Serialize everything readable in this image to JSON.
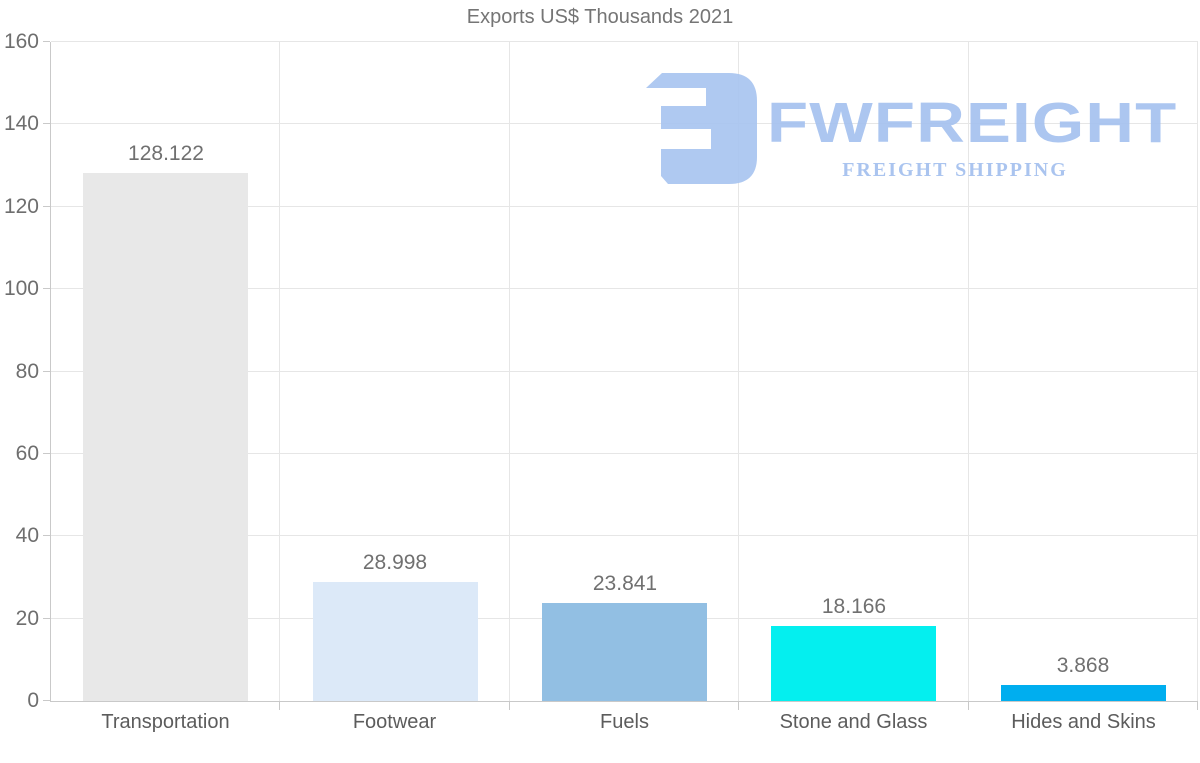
{
  "chart_data": {
    "type": "bar",
    "title": "Exports US$ Thousands 2021",
    "categories": [
      "Transportation",
      "Footwear",
      "Fuels",
      "Stone and Glass",
      "Hides and Skins"
    ],
    "values": [
      128.122,
      28.998,
      23.841,
      18.166,
      3.868
    ],
    "value_labels": [
      "128.122",
      "28.998",
      "23.841",
      "18.166",
      "3.868"
    ],
    "bar_colors": [
      "#e8e8e8",
      "#dce9f8",
      "#92bfe3",
      "#04efef",
      "#00aeef"
    ],
    "xlabel": "",
    "ylabel": "",
    "ylim": [
      0,
      160
    ],
    "ytick_step": 20,
    "ytick_labels": [
      "0",
      "20",
      "40",
      "60",
      "80",
      "100",
      "120",
      "140",
      "160"
    ],
    "grid": "horizontal gridlines at each y tick, vertical gridlines at category boundaries",
    "legend": "none"
  },
  "logo": {
    "wordmark": "FWFREIGHT",
    "tagline": "FREIGHT SHIPPING",
    "icon": "fwfreight-mark",
    "icon_color": "#a9c5f0",
    "wordmark_color": "#a6c2ef",
    "tagline_color": "#a4c0ee"
  },
  "colors": {
    "background": "#ffffff",
    "title_text": "#757575",
    "y_axis_label_text": "#6e6e6e",
    "x_axis_label_text": "#5c5c5c",
    "value_label_text": "#707070",
    "gridline": "#e6e6e6",
    "axis_line": "#c9c9c9"
  }
}
